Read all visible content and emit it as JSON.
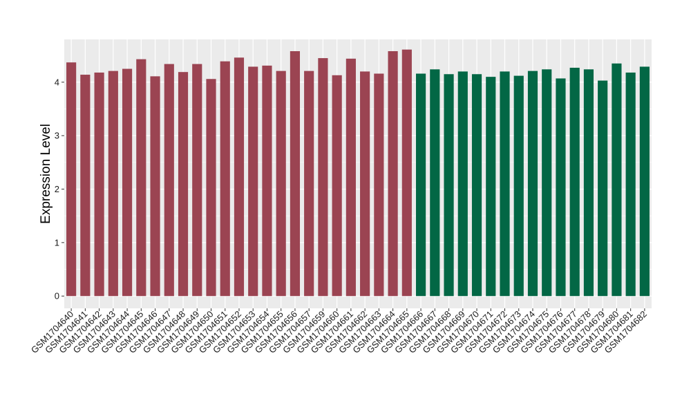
{
  "chart_data": {
    "type": "bar",
    "title": "",
    "xlabel": "",
    "ylabel": "Expression Level",
    "ylim": [
      -0.23,
      4.8
    ],
    "yticks": [
      0,
      1,
      2,
      3,
      4
    ],
    "grid": true,
    "legend": "none",
    "colors": {
      "panel_bg": "#EBEBEB",
      "grid": "#FFFFFF",
      "group_a": "#9B4452",
      "group_b": "#036745"
    },
    "categories": [
      "GSM1704640",
      "GSM1704641",
      "GSM1704642",
      "GSM1704643",
      "GSM1704644",
      "GSM1704645",
      "GSM1704646",
      "GSM1704647",
      "GSM1704648",
      "GSM1704649",
      "GSM1704650",
      "GSM1704651",
      "GSM1704652",
      "GSM1704653",
      "GSM1704654",
      "GSM1704655",
      "GSM1704656",
      "GSM1704657",
      "GSM1704659",
      "GSM1704660",
      "GSM1704661",
      "GSM1704662",
      "GSM1704663",
      "GSM1704664",
      "GSM1704665",
      "GSM1704666",
      "GSM1704667",
      "GSM1704668",
      "GSM1704669",
      "GSM1704670",
      "GSM1704671",
      "GSM1704672",
      "GSM1704673",
      "GSM1704674",
      "GSM1704675",
      "GSM1704676",
      "GSM1704677",
      "GSM1704678",
      "GSM1704679",
      "GSM1704680",
      "GSM1704681",
      "GSM1704682"
    ],
    "values": [
      4.37,
      4.14,
      4.18,
      4.21,
      4.25,
      4.43,
      4.11,
      4.34,
      4.19,
      4.34,
      4.06,
      4.39,
      4.46,
      4.29,
      4.31,
      4.21,
      4.58,
      4.21,
      4.45,
      4.13,
      4.44,
      4.2,
      4.16,
      4.58,
      4.61,
      4.16,
      4.24,
      4.15,
      4.2,
      4.15,
      4.1,
      4.2,
      4.12,
      4.21,
      4.24,
      4.07,
      4.27,
      4.24,
      4.03,
      4.35,
      4.18,
      4.29
    ],
    "bar_groups": [
      {
        "color": "#9B4452",
        "count": 25
      },
      {
        "color": "#036745",
        "count": 17
      }
    ]
  }
}
